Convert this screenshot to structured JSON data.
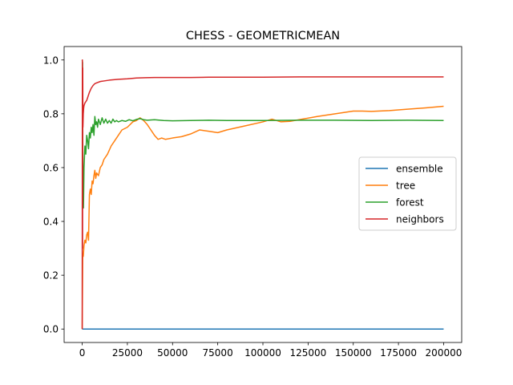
{
  "chart_data": {
    "type": "line",
    "title": "CHESS - GEOMETRICMEAN",
    "xlabel": "",
    "ylabel": "",
    "xlim": [
      -10000,
      210000
    ],
    "ylim": [
      -0.05,
      1.05
    ],
    "xticks": [
      0,
      25000,
      50000,
      75000,
      100000,
      125000,
      150000,
      175000,
      200000
    ],
    "yticks": [
      0.0,
      0.2,
      0.4,
      0.6,
      0.8,
      1.0
    ],
    "xtick_labels": [
      "0",
      "25000",
      "50000",
      "75000",
      "100000",
      "125000",
      "150000",
      "175000",
      "200000"
    ],
    "ytick_labels": [
      "0.0",
      "0.2",
      "0.4",
      "0.6",
      "0.8",
      "1.0"
    ],
    "grid": false,
    "legend_position": "center-right",
    "series": [
      {
        "name": "ensemble",
        "color": "#1f77b4",
        "x": [
          0,
          200000
        ],
        "y": [
          0.0,
          0.0
        ]
      },
      {
        "name": "tree",
        "color": "#ff7f0e",
        "x": [
          0,
          300,
          600,
          1000,
          1500,
          2000,
          2500,
          3000,
          3500,
          4000,
          4500,
          5000,
          5500,
          6000,
          6500,
          7000,
          7500,
          8000,
          9000,
          10000,
          11000,
          12000,
          14000,
          16000,
          18000,
          20000,
          22000,
          25000,
          28000,
          30000,
          32000,
          34000,
          36000,
          38000,
          40000,
          42000,
          44000,
          46000,
          50000,
          55000,
          60000,
          65000,
          70000,
          75000,
          80000,
          90000,
          100000,
          105000,
          110000,
          115000,
          120000,
          130000,
          140000,
          150000,
          155000,
          160000,
          170000,
          180000,
          190000,
          200000
        ],
        "y": [
          0.0,
          0.28,
          0.27,
          0.31,
          0.33,
          0.32,
          0.35,
          0.36,
          0.33,
          0.5,
          0.52,
          0.5,
          0.55,
          0.54,
          0.57,
          0.59,
          0.56,
          0.58,
          0.57,
          0.6,
          0.61,
          0.63,
          0.65,
          0.68,
          0.7,
          0.72,
          0.74,
          0.75,
          0.77,
          0.775,
          0.785,
          0.775,
          0.76,
          0.74,
          0.72,
          0.705,
          0.71,
          0.705,
          0.71,
          0.715,
          0.725,
          0.74,
          0.735,
          0.73,
          0.74,
          0.755,
          0.77,
          0.78,
          0.77,
          0.772,
          0.778,
          0.79,
          0.8,
          0.81,
          0.81,
          0.809,
          0.812,
          0.817,
          0.822,
          0.828
        ]
      },
      {
        "name": "forest",
        "color": "#2ca02c",
        "x": [
          0,
          200,
          400,
          700,
          1000,
          1500,
          2000,
          2500,
          3000,
          3500,
          4000,
          4500,
          5000,
          5500,
          6000,
          6500,
          7000,
          7500,
          8000,
          8500,
          9000,
          10000,
          11000,
          12000,
          13000,
          14000,
          15000,
          16000,
          17000,
          18000,
          19000,
          20000,
          22000,
          24000,
          26000,
          28000,
          30000,
          32000,
          34000,
          36000,
          40000,
          45000,
          50000,
          60000,
          70000,
          80000,
          100000,
          120000,
          140000,
          160000,
          180000,
          200000
        ],
        "y": [
          1.0,
          0.99,
          0.5,
          0.45,
          0.6,
          0.68,
          0.65,
          0.72,
          0.7,
          0.67,
          0.73,
          0.71,
          0.75,
          0.73,
          0.76,
          0.72,
          0.79,
          0.76,
          0.77,
          0.75,
          0.78,
          0.76,
          0.785,
          0.765,
          0.78,
          0.765,
          0.775,
          0.765,
          0.78,
          0.77,
          0.775,
          0.77,
          0.775,
          0.772,
          0.778,
          0.774,
          0.779,
          0.782,
          0.778,
          0.776,
          0.778,
          0.775,
          0.774,
          0.775,
          0.776,
          0.775,
          0.775,
          0.776,
          0.776,
          0.775,
          0.776,
          0.775
        ]
      },
      {
        "name": "neighbors",
        "color": "#d62728",
        "x": [
          0,
          100,
          200,
          300,
          400,
          600,
          800,
          1000,
          1500,
          2000,
          2500,
          3000,
          4000,
          5000,
          6000,
          7000,
          8000,
          10000,
          12000,
          15000,
          20000,
          25000,
          30000,
          35000,
          40000,
          50000,
          60000,
          70000,
          80000,
          100000,
          120000,
          150000,
          175000,
          200000
        ],
        "y": [
          0.0,
          1.0,
          0.3,
          0.97,
          0.75,
          0.8,
          0.82,
          0.83,
          0.84,
          0.845,
          0.85,
          0.86,
          0.88,
          0.895,
          0.905,
          0.912,
          0.915,
          0.92,
          0.922,
          0.925,
          0.928,
          0.93,
          0.933,
          0.934,
          0.935,
          0.935,
          0.935,
          0.936,
          0.936,
          0.936,
          0.937,
          0.937,
          0.937,
          0.937
        ]
      }
    ]
  }
}
